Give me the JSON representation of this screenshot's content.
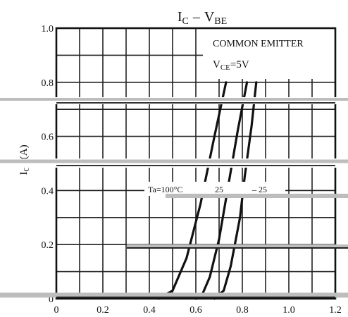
{
  "chart_data": {
    "type": "line",
    "title": {
      "main": "I",
      "main_sub": "C",
      "dash": "–",
      "v": "V",
      "v_sub": "BE"
    },
    "ylabel": {
      "main": "I",
      "sub": "C",
      "unit": "(A)"
    },
    "xlabel": "",
    "xlim": [
      0,
      1.2
    ],
    "ylim": [
      0,
      1.0
    ],
    "x_ticks": [
      "0",
      "0.2",
      "0.4",
      "0.6",
      "0.8",
      "1.0",
      "1.2"
    ],
    "y_ticks": [
      "0",
      "0.2",
      "0.4",
      "0.6",
      "0.8",
      "1.0"
    ],
    "grid": true,
    "annotation": {
      "condition_line1": "COMMON EMITTER",
      "condition_v": "V",
      "condition_sub": "CE",
      "condition_value": "=5V"
    },
    "series_labels": {
      "ta_prefix": "Ta=100°C",
      "mid": "25",
      "right": "– 25"
    },
    "series": [
      {
        "x": [
          0.44,
          0.5,
          0.56,
          0.62,
          0.68,
          0.73
        ],
        "y": [
          0.0,
          0.03,
          0.15,
          0.35,
          0.6,
          0.8
        ]
      },
      {
        "x": [
          0.6,
          0.63,
          0.66,
          0.7,
          0.74,
          0.78,
          0.82
        ],
        "y": [
          0.0,
          0.02,
          0.08,
          0.22,
          0.42,
          0.62,
          0.8
        ]
      },
      {
        "x": [
          0.68,
          0.72,
          0.75,
          0.79,
          0.81,
          0.84,
          0.86
        ],
        "y": [
          0.0,
          0.03,
          0.12,
          0.3,
          0.45,
          0.64,
          0.8
        ]
      }
    ]
  }
}
